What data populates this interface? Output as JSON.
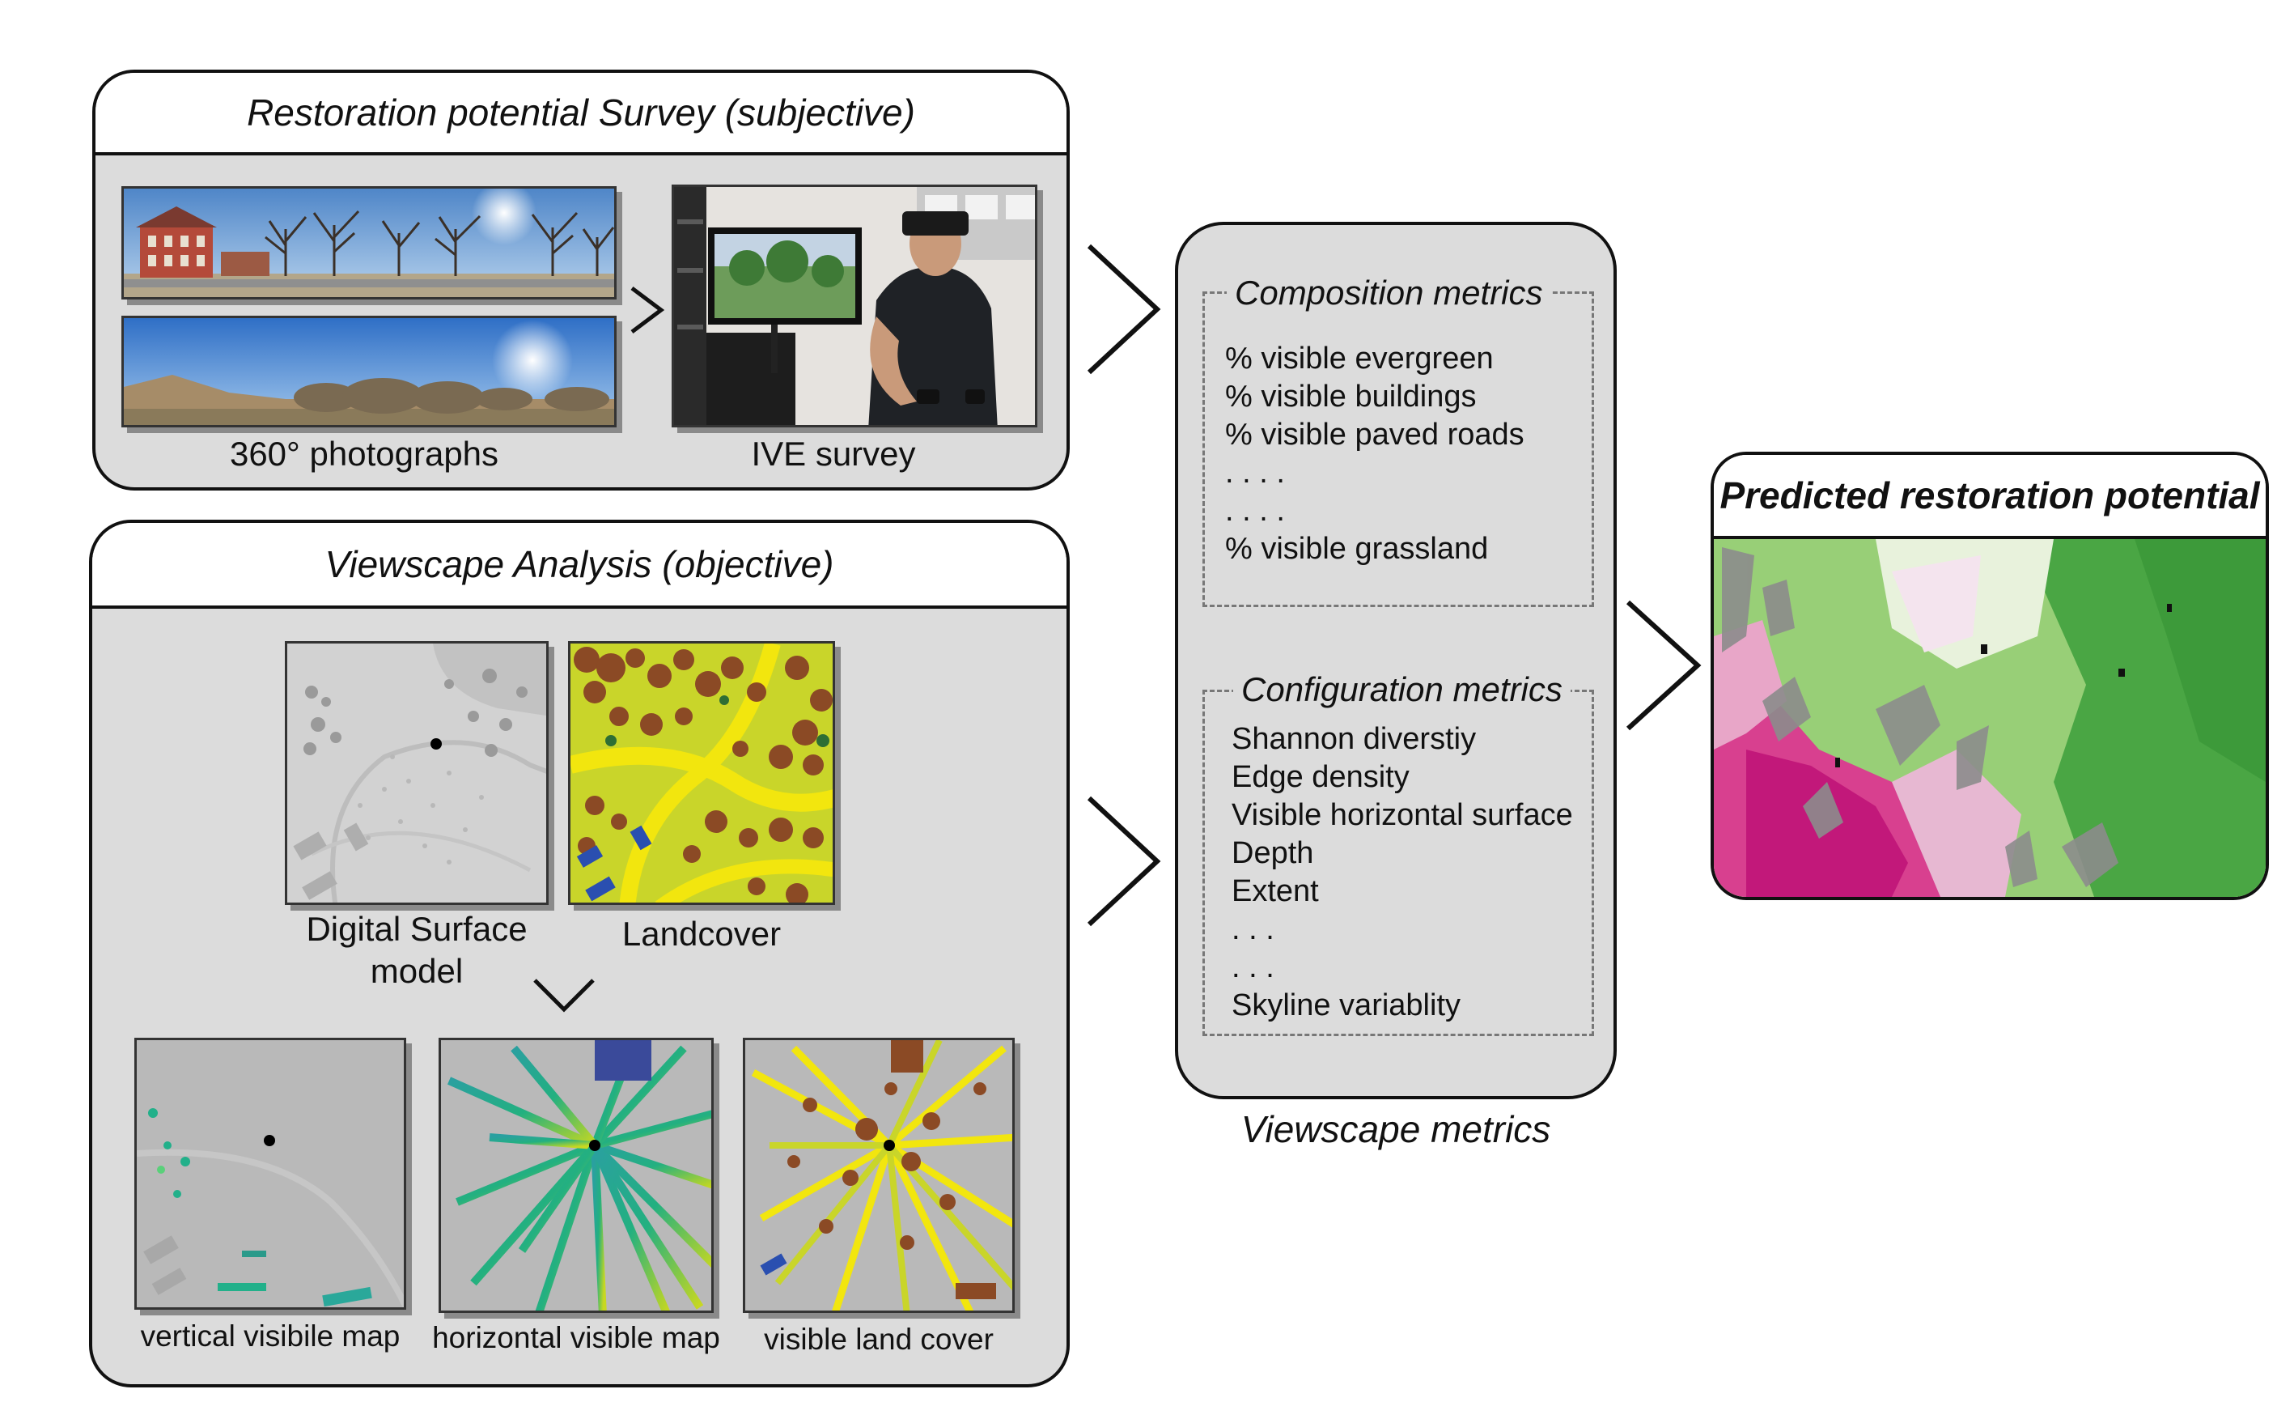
{
  "survey_panel": {
    "title": "Restoration potential Survey (subjective)",
    "photos_caption": "360° photographs",
    "ive_caption": "IVE survey"
  },
  "viewscape_panel": {
    "title": "Viewscape Analysis (objective)",
    "dsm_caption_line1": "Digital Surface",
    "dsm_caption_line2": "model",
    "landcover_caption": "Landcover",
    "vertical_caption": "vertical visibile map",
    "horizontal_caption": "horizontal visible map",
    "visible_landcover_caption": "visible land cover"
  },
  "metrics_panel": {
    "composition_title": "Composition metrics",
    "composition_items": [
      "% visible evergreen",
      "% visible buildings",
      "% visible paved roads",
      ". . . .",
      ". . . .",
      "% visible grassland"
    ],
    "configuration_title": "Configuration metrics",
    "configuration_items": [
      "Shannon diverstiy",
      "Edge density",
      "Visible horizontal surface",
      "Depth",
      "Extent",
      ". . .",
      ". . .",
      "Skyline variablity"
    ],
    "caption": "Viewscape metrics"
  },
  "prediction_panel": {
    "title": "Predicted restoration potential"
  },
  "colors": {
    "panel_fill": "#dcdcdc",
    "landcover_ground": "#c9d52a",
    "landcover_road": "#f2e60e",
    "landcover_tree": "#8b4a25",
    "landcover_building": "#2a4fb0",
    "prediction_high": "#3d9a3a",
    "prediction_low": "#c2187a"
  }
}
